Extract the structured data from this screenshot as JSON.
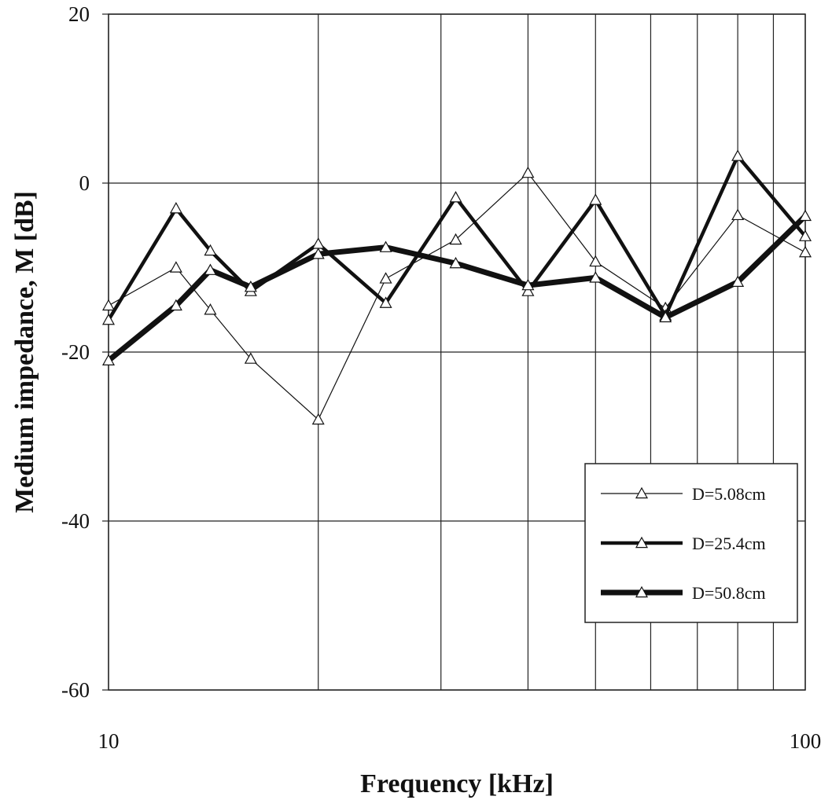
{
  "chart_data": {
    "type": "line",
    "title": "",
    "xlabel": "Frequency [kHz]",
    "ylabel": "Medium impedance, M [dB]",
    "x_scale": "log",
    "xlim": [
      10,
      100
    ],
    "ylim": [
      -60,
      20
    ],
    "x_ticks": [
      10,
      100
    ],
    "x_tick_labels": [
      "10",
      "100"
    ],
    "y_ticks": [
      20,
      0,
      -20,
      -40,
      -60
    ],
    "y_tick_labels": [
      "20",
      "0",
      "-20",
      "-40",
      "-60"
    ],
    "x_gridlines": [
      10,
      20,
      30,
      40,
      50,
      60,
      70,
      80,
      90,
      100
    ],
    "y_gridlines": [
      20,
      0,
      -20,
      -40,
      -60
    ],
    "grid": true,
    "legend_position": "bottom-right",
    "marker": "open-triangle",
    "colors": {
      "line": "#111111",
      "marker_fill": "#ffffff",
      "grid": "#222222"
    },
    "series": [
      {
        "name": "D=5.08cm",
        "line_weight": "thin",
        "x": [
          10,
          12.5,
          14,
          16,
          20,
          25,
          31.5,
          40,
          50,
          63,
          80,
          100
        ],
        "y": [
          -14.5,
          -10,
          -15,
          -20.8,
          -28,
          -11.3,
          -6.7,
          1.2,
          -9.3,
          -14.8,
          -3.8,
          -8.2
        ]
      },
      {
        "name": "D=25.4cm",
        "line_weight": "medium",
        "x": [
          10,
          12.5,
          14,
          16,
          20,
          25,
          31.5,
          40,
          50,
          63,
          80,
          100
        ],
        "y": [
          -16.2,
          -3,
          -8,
          -12.8,
          -7.2,
          -14.2,
          -1.7,
          -12.8,
          -2,
          -15.7,
          3.2,
          -6.3
        ]
      },
      {
        "name": "D=50.8cm",
        "line_weight": "thick",
        "x": [
          10,
          12.5,
          14,
          16,
          20,
          25,
          31.5,
          40,
          50,
          63,
          80,
          100
        ],
        "y": [
          -21,
          -14.5,
          -10.3,
          -12.3,
          -8.4,
          -7.6,
          -9.5,
          -12.1,
          -11.2,
          -15.9,
          -11.7,
          -3.9
        ]
      }
    ]
  }
}
